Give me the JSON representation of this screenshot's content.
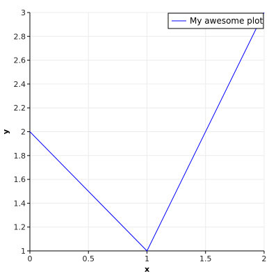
{
  "chart_data": {
    "type": "line",
    "xlabel": "x",
    "ylabel": "y",
    "xlim": [
      0,
      2
    ],
    "ylim": [
      1,
      3
    ],
    "xticks": [
      0,
      0.5,
      1,
      1.5,
      2
    ],
    "xtick_labels": [
      "0",
      "0.5",
      "1",
      "1.5",
      "2"
    ],
    "yticks": [
      1,
      1.2,
      1.4,
      1.6,
      1.8,
      2,
      2.2,
      2.4,
      2.6,
      2.8,
      3
    ],
    "ytick_labels": [
      "1",
      "1.2",
      "1.4",
      "1.6",
      "1.8",
      "2",
      "2.2",
      "2.4",
      "2.6",
      "2.8",
      "3"
    ],
    "grid": true,
    "legend_position": "top-right",
    "series": [
      {
        "name": "My awesome plot",
        "color": "#0000ff",
        "x": [
          0,
          1,
          2
        ],
        "y": [
          2,
          1,
          3
        ]
      }
    ]
  }
}
